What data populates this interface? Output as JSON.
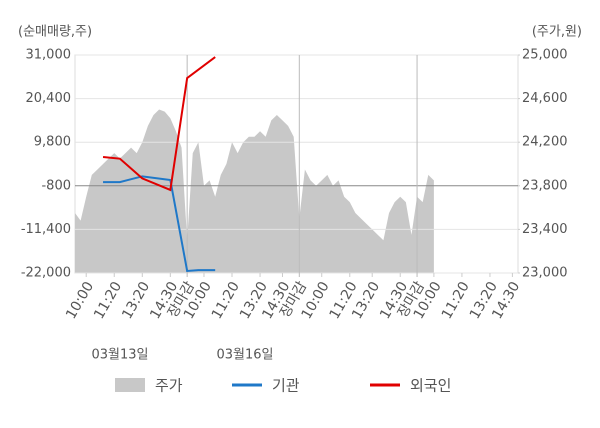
{
  "chart_data": {
    "type": "line",
    "y_axis_title": "(순매매량,주)",
    "y2_axis_title": "(주가,원)",
    "x": [
      0,
      1,
      2,
      3,
      4,
      5,
      6,
      7,
      8,
      9,
      10,
      11,
      12,
      13,
      14,
      15,
      16,
      17,
      18,
      19,
      20,
      21,
      22,
      23,
      24,
      25,
      26,
      27,
      28,
      29,
      30,
      31,
      32,
      33,
      34,
      35,
      36,
      37,
      38,
      39,
      40,
      41,
      42,
      43,
      44,
      45,
      46,
      47,
      48,
      49,
      50,
      51,
      52,
      53,
      54,
      55,
      56,
      57,
      58,
      59,
      60,
      61,
      62,
      63,
      64
    ],
    "xlim": [
      0,
      79
    ],
    "xticks": [
      {
        "value": 2,
        "label": "10:00"
      },
      {
        "value": 7,
        "label": "11:20"
      },
      {
        "value": 12,
        "label": "13:20"
      },
      {
        "value": 17,
        "label": "14:30"
      },
      {
        "value": 20,
        "label": "장마감"
      },
      {
        "value": 23,
        "label": "10:00"
      },
      {
        "value": 28,
        "label": "11:20"
      },
      {
        "value": 33,
        "label": "13:20"
      },
      {
        "value": 37,
        "label": "14:30"
      },
      {
        "value": 40,
        "label": "장마감"
      },
      {
        "value": 44,
        "label": "10:00"
      },
      {
        "value": 49,
        "label": "11:20"
      },
      {
        "value": 53,
        "label": "13:20"
      },
      {
        "value": 58,
        "label": "14:30"
      },
      {
        "value": 61,
        "label": "장마감"
      },
      {
        "value": 64,
        "label": "10:00"
      },
      {
        "value": 69,
        "label": "11:20"
      },
      {
        "value": 74,
        "label": "13:20"
      },
      {
        "value": 78,
        "label": "14:30"
      }
    ],
    "session_end_ticks": [
      4,
      9,
      14
    ],
    "session_end_color": "#e60000",
    "date_labels": [
      "03월13일",
      "03월16일"
    ],
    "ylim": [
      -22000,
      31000
    ],
    "yticks": [
      {
        "value": -22000,
        "label": "-22,000"
      },
      {
        "value": -11400,
        "label": "-11,400"
      },
      {
        "value": -800,
        "label": "-800"
      },
      {
        "value": 9800,
        "label": "9,800"
      },
      {
        "value": 20400,
        "label": "20,400"
      },
      {
        "value": 31000,
        "label": "31,000"
      }
    ],
    "y2lim": [
      23000,
      25000
    ],
    "y2ticks": [
      {
        "value": 23000,
        "label": "23,000"
      },
      {
        "value": 23400,
        "label": "23,400"
      },
      {
        "value": 23800,
        "label": "23,800"
      },
      {
        "value": 24200,
        "label": "24,200"
      },
      {
        "value": 24600,
        "label": "24,600"
      },
      {
        "value": 25000,
        "label": "25,000"
      }
    ],
    "grid": true,
    "series": [
      {
        "name": "주가",
        "kind": "area",
        "axis": "y2",
        "color": "#c8c8c8",
        "values": [
          23550,
          23480,
          23700,
          23900,
          23950,
          24000,
          24050,
          24100,
          24050,
          24100,
          24150,
          24100,
          24200,
          24350,
          24450,
          24500,
          24480,
          24420,
          24300,
          24150,
          23300,
          24100,
          24200,
          23800,
          23850,
          23700,
          23900,
          24000,
          24200,
          24100,
          24200,
          24250,
          24250,
          24300,
          24250,
          24400,
          24450,
          24400,
          24350,
          24250,
          23500,
          23950,
          23850,
          23800,
          23850,
          23900,
          23800,
          23850,
          23700,
          23650,
          23550,
          23500,
          23450,
          23400,
          23350,
          23300,
          23550,
          23650,
          23700,
          23650,
          23350,
          23700,
          23650,
          23900,
          23850
        ]
      },
      {
        "name": "기관",
        "kind": "line",
        "color": "#1f78c8",
        "values": [
          null,
          null,
          null,
          null,
          null,
          100,
          null,
          null,
          100,
          null,
          null,
          null,
          1500,
          null,
          null,
          null,
          null,
          600,
          null,
          null,
          -21500,
          null,
          -21300,
          null,
          null,
          -21300,
          null,
          null,
          null,
          null,
          null,
          null,
          null,
          null,
          null,
          null,
          null,
          null,
          null,
          null,
          null,
          null,
          null,
          null,
          null,
          null,
          null,
          null,
          null,
          null,
          null,
          null,
          null,
          null,
          null,
          null,
          null,
          null,
          null,
          null,
          null,
          null,
          null,
          null,
          null
        ]
      },
      {
        "name": "외국인",
        "kind": "line",
        "color": "#e00000",
        "values": [
          null,
          null,
          null,
          null,
          null,
          6200,
          null,
          null,
          5800,
          null,
          null,
          null,
          1000,
          null,
          null,
          null,
          null,
          -1800,
          null,
          null,
          25400,
          null,
          null,
          null,
          null,
          30500,
          null,
          null,
          null,
          null,
          null,
          null,
          null,
          null,
          null,
          null,
          null,
          null,
          null,
          null,
          null,
          null,
          null,
          null,
          null,
          null,
          null,
          null,
          null,
          null,
          null,
          null,
          null,
          null,
          null,
          null,
          null,
          null,
          null,
          null,
          null,
          null,
          null,
          null,
          null
        ]
      }
    ]
  }
}
